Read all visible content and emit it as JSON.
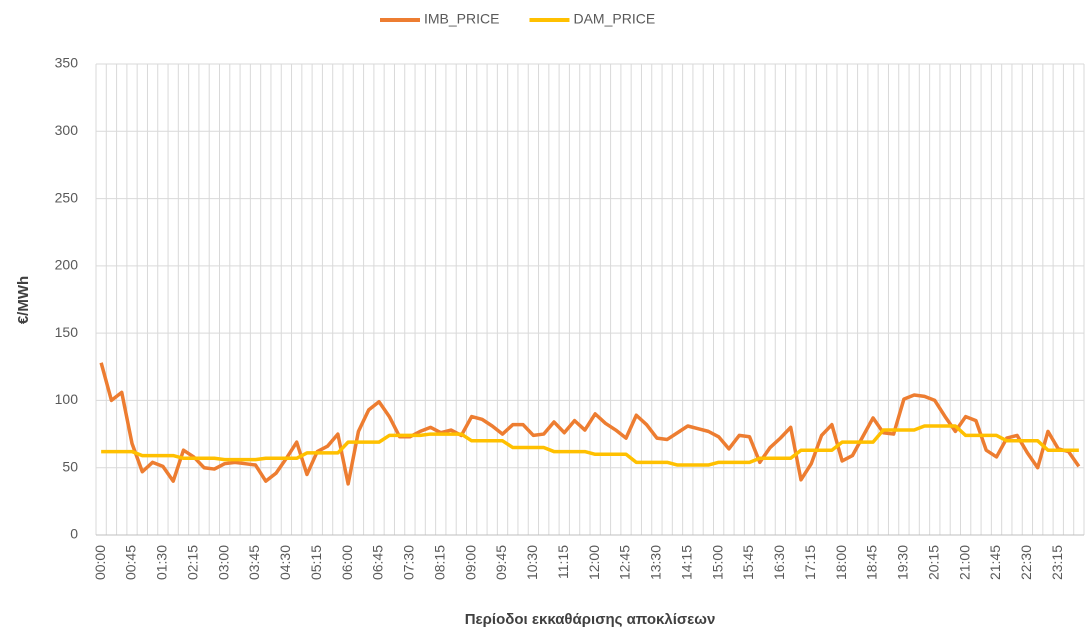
{
  "chart_data": {
    "type": "line",
    "x_label": "Περίοδοι εκκαθάρισης αποκλίσεων",
    "y_label": "€/MWh",
    "categories": [
      "00:00",
      null,
      null,
      "00:45",
      null,
      null,
      "01:30",
      null,
      null,
      "02:15",
      null,
      null,
      "03:00",
      null,
      null,
      "03:45",
      null,
      null,
      "04:30",
      null,
      null,
      "05:15",
      null,
      null,
      "06:00",
      null,
      null,
      "06:45",
      null,
      null,
      "07:30",
      null,
      null,
      "08:15",
      null,
      null,
      "09:00",
      null,
      null,
      "09:45",
      null,
      null,
      "10:30",
      null,
      null,
      "11:15",
      null,
      null,
      "12:00",
      null,
      null,
      "12:45",
      null,
      null,
      "13:30",
      null,
      null,
      "14:15",
      null,
      null,
      "15:00",
      null,
      null,
      "15:45",
      null,
      null,
      "16:30",
      null,
      null,
      "17:15",
      null,
      null,
      "18:00",
      null,
      null,
      "18:45",
      null,
      null,
      "19:30",
      null,
      null,
      "20:15",
      null,
      null,
      "21:00",
      null,
      null,
      "21:45",
      null,
      null,
      "22:30",
      null,
      null,
      "23:15",
      null,
      null
    ],
    "series": [
      {
        "name": "IMB_PRICE",
        "color": "#ed7d31",
        "values": [
          128,
          100,
          106,
          68,
          47,
          54,
          51,
          40,
          63,
          58,
          50,
          49,
          53,
          54,
          53,
          52,
          40,
          46,
          57,
          69,
          45,
          62,
          66,
          75,
          38,
          77,
          93,
          99,
          88,
          73,
          73,
          77,
          80,
          76,
          78,
          74,
          88,
          86,
          81,
          75,
          82,
          82,
          74,
          75,
          84,
          76,
          85,
          78,
          90,
          83,
          78,
          72,
          89,
          82,
          72,
          71,
          76,
          81,
          79,
          77,
          73,
          64,
          74,
          73,
          54,
          65,
          72,
          80,
          41,
          53,
          74,
          82,
          55,
          59,
          73,
          87,
          76,
          75,
          101,
          104,
          103,
          100,
          88,
          77,
          88,
          85,
          63,
          58,
          72,
          74,
          61,
          50,
          77,
          64,
          62,
          51
        ]
      },
      {
        "name": "DAM_PRICE",
        "color": "#ffc000",
        "values": [
          62,
          62,
          62,
          62,
          59,
          59,
          59,
          59,
          57,
          57,
          57,
          57,
          56,
          56,
          56,
          56,
          57,
          57,
          57,
          57,
          61,
          61,
          61,
          61,
          69,
          69,
          69,
          69,
          74,
          74,
          74,
          74,
          75,
          75,
          75,
          75,
          70,
          70,
          70,
          70,
          65,
          65,
          65,
          65,
          62,
          62,
          62,
          62,
          60,
          60,
          60,
          60,
          54,
          54,
          54,
          54,
          52,
          52,
          52,
          52,
          54,
          54,
          54,
          54,
          57,
          57,
          57,
          57,
          63,
          63,
          63,
          63,
          69,
          69,
          69,
          69,
          78,
          78,
          78,
          78,
          81,
          81,
          81,
          81,
          74,
          74,
          74,
          74,
          70,
          70,
          70,
          70,
          63,
          63,
          63,
          63
        ]
      }
    ],
    "ylim": [
      0,
      350
    ],
    "yticks": [
      0,
      50,
      100,
      150,
      200,
      250,
      300,
      350
    ],
    "grid": true,
    "legend": "top"
  }
}
